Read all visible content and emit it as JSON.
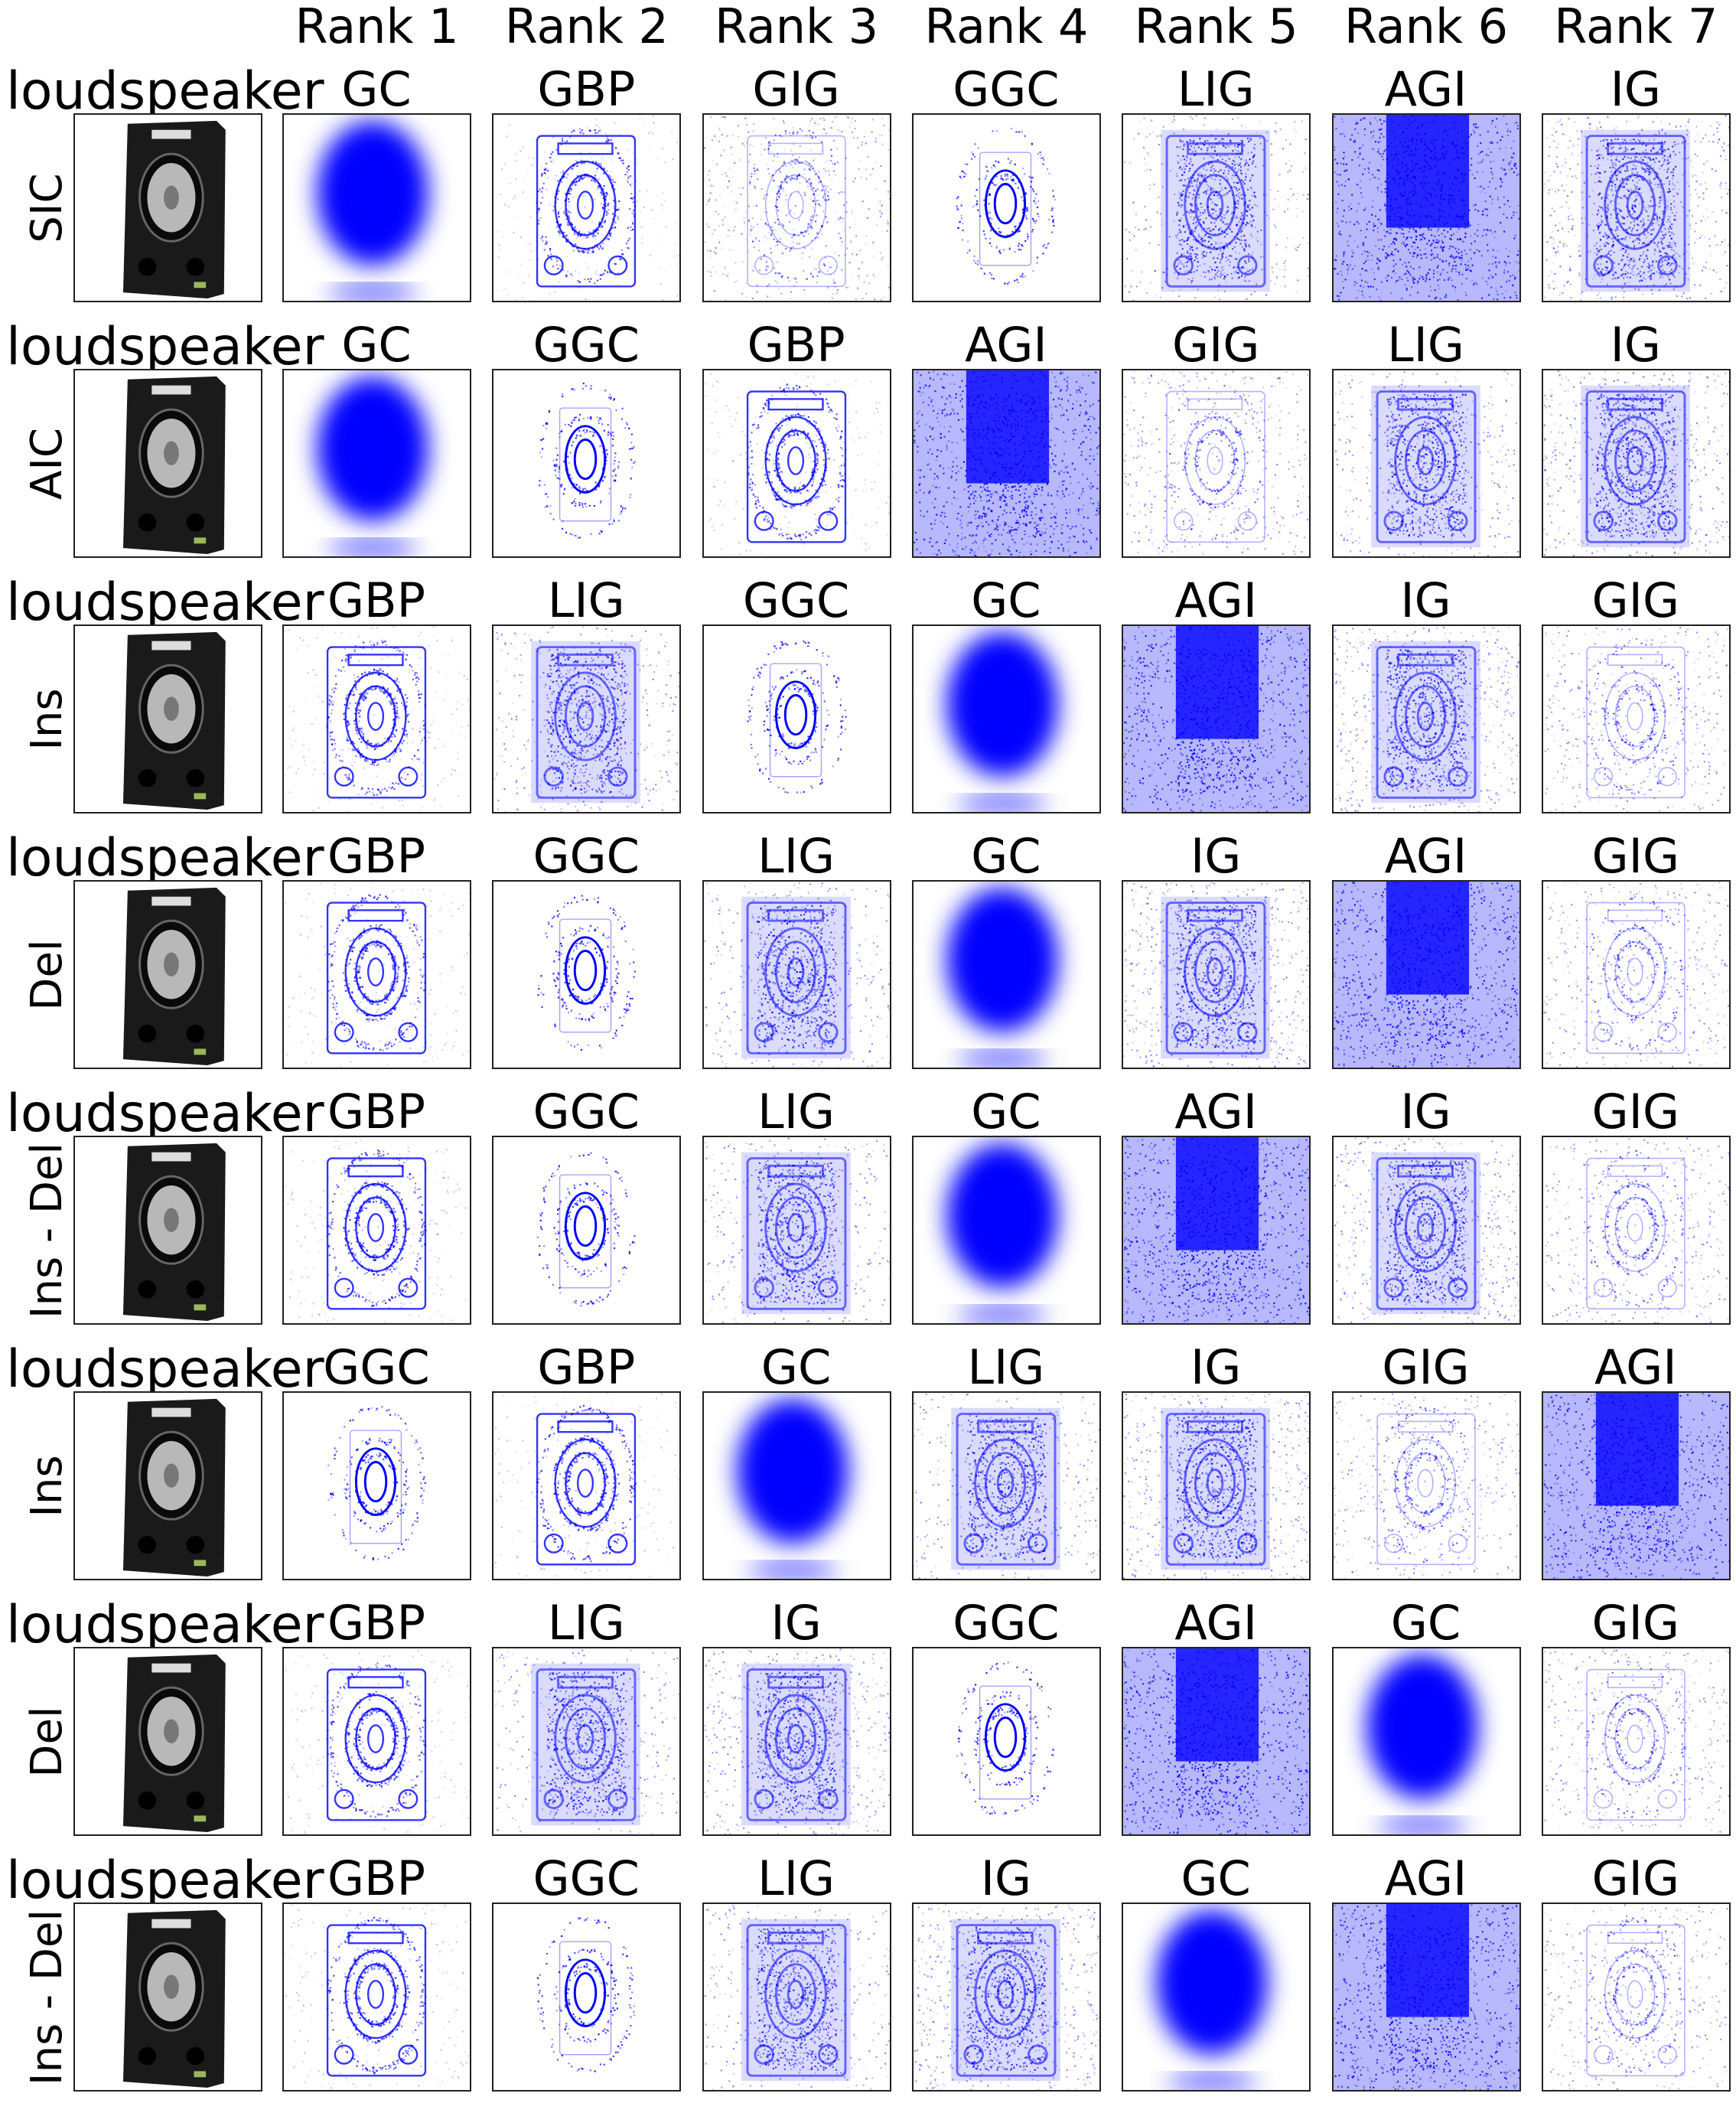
{
  "rank_headers": [
    "Rank 1",
    "Rank 2",
    "Rank 3",
    "Rank 4",
    "Rank 5",
    "Rank 6",
    "Rank 7"
  ],
  "rows": [
    {
      "class_label": "loudspeaker",
      "metric": "SIC",
      "methods": [
        "GC",
        "GBP",
        "GIG",
        "GGC",
        "LIG",
        "AGI",
        "IG"
      ]
    },
    {
      "class_label": "loudspeaker",
      "metric": "AIC",
      "methods": [
        "GC",
        "GGC",
        "GBP",
        "AGI",
        "GIG",
        "LIG",
        "IG"
      ]
    },
    {
      "class_label": "loudspeaker",
      "metric": "Ins",
      "methods": [
        "GBP",
        "LIG",
        "GGC",
        "GC",
        "AGI",
        "IG",
        "GIG"
      ]
    },
    {
      "class_label": "loudspeaker",
      "metric": "Del",
      "methods": [
        "GBP",
        "GGC",
        "LIG",
        "GC",
        "IG",
        "AGI",
        "GIG"
      ]
    },
    {
      "class_label": "loudspeaker",
      "metric": "Ins - Del",
      "methods": [
        "GBP",
        "GGC",
        "LIG",
        "GC",
        "AGI",
        "IG",
        "GIG"
      ]
    },
    {
      "class_label": "loudspeaker",
      "metric": "Ins",
      "methods": [
        "GGC",
        "GBP",
        "GC",
        "LIG",
        "IG",
        "GIG",
        "AGI"
      ]
    },
    {
      "class_label": "loudspeaker",
      "metric": "Del",
      "methods": [
        "GBP",
        "LIG",
        "IG",
        "GGC",
        "AGI",
        "GC",
        "GIG"
      ]
    },
    {
      "class_label": "loudspeaker",
      "metric": "Ins - Del",
      "methods": [
        "GBP",
        "GGC",
        "LIG",
        "IG",
        "GC",
        "AGI",
        "GIG"
      ]
    }
  ],
  "colors": {
    "saliency": "#0000ff",
    "speaker_body": "#1a1a1a",
    "speaker_cone": "#b8b8b8",
    "border": "#222222"
  }
}
